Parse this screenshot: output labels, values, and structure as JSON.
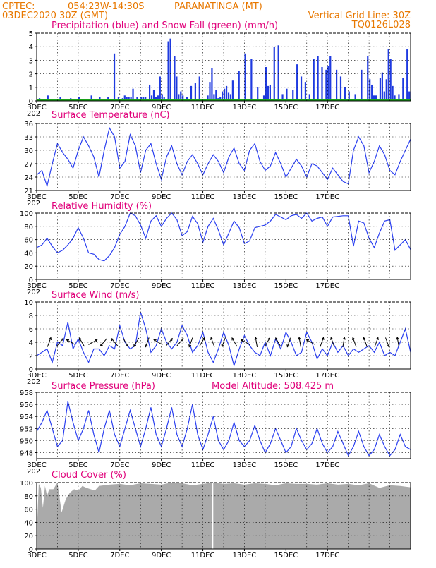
{
  "header": {
    "source": "CPTEC:",
    "coords": "054:23W-14:30S",
    "station": "PARANATINGA (MT)",
    "run": "03DEC2020 30Z (GMT)",
    "grid_note": "Vertical Grid Line: 30Z",
    "code": "TQ0126L028"
  },
  "x_axis": {
    "dates": [
      "3DEC",
      "5DEC",
      "7DEC",
      "9DEC",
      "11DEC",
      "13DEC",
      "15DEC",
      "17DEC"
    ],
    "year_fragment": "202"
  },
  "colors": {
    "precip": "#1f3be0",
    "snow": "#18a018",
    "line": "#2a3ff0",
    "cloud": "#aaaaaa",
    "title": "#e0007a",
    "header": "#e87800"
  },
  "chart_data": [
    {
      "id": "precip",
      "type": "bar",
      "title": "Precipitation (blue) and Snow Fall (green) (mm/h)",
      "ylim": [
        0,
        5
      ],
      "yticks": [
        0,
        1,
        2,
        3,
        4,
        5
      ],
      "series": [
        {
          "name": "Precipitation",
          "x": [
            0.1,
            0.5,
            1.1,
            1.6,
            2.0,
            2.6,
            3.0,
            3.4,
            3.7,
            3.9,
            4.1,
            4.2,
            4.3,
            4.4,
            4.5,
            4.6,
            4.8,
            5.0,
            5.1,
            5.2,
            5.4,
            5.5,
            5.6,
            5.7,
            5.8,
            5.9,
            6.0,
            6.1,
            6.3,
            6.4,
            6.6,
            6.7,
            6.8,
            6.9,
            7.0,
            7.2,
            7.4,
            7.6,
            7.8,
            8.2,
            8.3,
            8.4,
            8.5,
            8.6,
            8.7,
            8.8,
            8.9,
            9.0,
            9.1,
            9.2,
            9.3,
            9.4,
            9.7,
            10.0,
            10.3,
            10.6,
            10.9,
            11.0,
            11.1,
            11.2,
            11.4,
            11.6,
            11.8,
            12.0,
            12.3,
            12.5,
            12.7,
            12.9,
            13.1,
            13.3,
            13.5,
            13.7,
            13.9,
            14.0,
            14.1,
            14.4,
            14.6,
            14.8,
            15.0,
            15.3,
            15.6,
            15.9,
            16.0,
            16.1,
            16.2,
            16.3,
            16.5,
            16.6,
            16.7,
            16.8,
            16.9,
            17.0,
            17.1,
            17.2,
            17.4,
            17.6,
            17.8,
            17.9
          ],
          "values": [
            0.2,
            0.4,
            0.3,
            0.2,
            0.3,
            0.4,
            0.3,
            0.3,
            3.5,
            0.3,
            0.2,
            0.4,
            0.3,
            0.3,
            0.3,
            0.9,
            0.3,
            0.3,
            0.3,
            0.3,
            1.2,
            0.4,
            0.8,
            0.3,
            0.4,
            1.8,
            0.5,
            0.3,
            4.4,
            4.6,
            3.3,
            1.8,
            0.5,
            0.7,
            0.4,
            0.3,
            1.1,
            1.3,
            1.8,
            0.4,
            1.4,
            2.4,
            0.5,
            0.8,
            0.2,
            0.3,
            0.7,
            0.9,
            1.1,
            0.6,
            0.5,
            1.5,
            2.2,
            3.5,
            3.1,
            1.0,
            0.4,
            2.5,
            1.1,
            1.2,
            4.0,
            4.1,
            0.5,
            0.9,
            0.8,
            2.7,
            1.8,
            1.4,
            0.5,
            3.1,
            3.3,
            2.5,
            2.3,
            2.6,
            3.3,
            2.3,
            1.8,
            1.0,
            0.7,
            0.5,
            2.3,
            3.3,
            1.6,
            1.2,
            0.4,
            0.4,
            1.7,
            2.1,
            0.7,
            1.6,
            3.8,
            3.1,
            1.1,
            0.4,
            0.5,
            1.7,
            3.8,
            0.7
          ]
        },
        {
          "name": "Snow Fall",
          "values": [
            0
          ]
        }
      ]
    },
    {
      "id": "temp",
      "type": "line",
      "title": "Surface Temperature (nC)",
      "ylim": [
        21,
        36
      ],
      "yticks": [
        21,
        24,
        27,
        30,
        33,
        36
      ],
      "x": [
        0,
        0.25,
        0.5,
        0.75,
        1.0,
        1.25,
        1.5,
        1.75,
        2.0,
        2.25,
        2.5,
        2.75,
        3.0,
        3.25,
        3.5,
        3.75,
        4.0,
        4.25,
        4.5,
        4.75,
        5.0,
        5.25,
        5.5,
        5.75,
        6.0,
        6.25,
        6.5,
        6.75,
        7.0,
        7.25,
        7.5,
        7.75,
        8.0,
        8.25,
        8.5,
        8.75,
        9.0,
        9.25,
        9.5,
        9.75,
        10.0,
        10.25,
        10.5,
        10.75,
        11.0,
        11.25,
        11.5,
        11.75,
        12.0,
        12.25,
        12.5,
        12.75,
        13.0,
        13.25,
        13.5,
        13.75,
        14.0,
        14.25,
        14.5,
        14.75,
        15.0,
        15.25,
        15.5,
        15.75,
        16.0,
        16.25,
        16.5,
        16.75,
        17.0,
        17.25,
        17.5,
        17.75,
        18.0
      ],
      "values": [
        24.5,
        25.5,
        22.0,
        27.0,
        31.5,
        29.5,
        28.0,
        26.0,
        30.0,
        33.0,
        31.0,
        28.5,
        24.0,
        30.0,
        35.0,
        33.0,
        26.0,
        27.5,
        33.5,
        31.0,
        25.0,
        30.0,
        31.5,
        27.0,
        23.5,
        28.5,
        31.0,
        27.0,
        24.5,
        27.5,
        29.0,
        27.0,
        24.5,
        27.0,
        29.0,
        27.5,
        25.0,
        28.5,
        30.5,
        27.0,
        25.5,
        30.0,
        31.5,
        27.5,
        25.5,
        26.5,
        29.5,
        27.0,
        24.0,
        26.0,
        28.0,
        26.5,
        24.0,
        27.0,
        26.5,
        25.0,
        23.5,
        26.0,
        24.5,
        23.0,
        22.5,
        30.0,
        33.0,
        31.0,
        25.0,
        27.5,
        31.0,
        29.0,
        25.5,
        24.5,
        27.5,
        30.0,
        32.5
      ]
    },
    {
      "id": "rh",
      "type": "line",
      "title": "Relative Humidity (%)",
      "ylim": [
        0,
        100
      ],
      "yticks": [
        0,
        20,
        40,
        60,
        80,
        100
      ],
      "x": [
        0,
        0.25,
        0.5,
        0.75,
        1.0,
        1.25,
        1.5,
        1.75,
        2.0,
        2.25,
        2.5,
        2.75,
        3.0,
        3.25,
        3.5,
        3.75,
        4.0,
        4.25,
        4.5,
        4.75,
        5.0,
        5.25,
        5.5,
        5.75,
        6.0,
        6.25,
        6.5,
        6.75,
        7.0,
        7.25,
        7.5,
        7.75,
        8.0,
        8.25,
        8.5,
        8.75,
        9.0,
        9.25,
        9.5,
        9.75,
        10.0,
        10.25,
        10.5,
        10.75,
        11.0,
        11.25,
        11.5,
        11.75,
        12.0,
        12.25,
        12.5,
        12.75,
        13.0,
        13.25,
        13.5,
        13.75,
        14.0,
        14.25,
        14.5,
        14.75,
        15.0,
        15.25,
        15.5,
        15.75,
        16.0,
        16.25,
        16.5,
        16.75,
        17.0,
        17.25,
        17.5,
        17.75,
        18.0
      ],
      "values": [
        48,
        52,
        62,
        50,
        40,
        44,
        52,
        62,
        78,
        62,
        40,
        38,
        30,
        28,
        36,
        48,
        68,
        80,
        100,
        96,
        82,
        62,
        88,
        96,
        80,
        92,
        100,
        90,
        66,
        72,
        95,
        84,
        56,
        80,
        92,
        74,
        52,
        70,
        88,
        78,
        54,
        58,
        78,
        80,
        82,
        88,
        98,
        94,
        90,
        96,
        98,
        92,
        100,
        88,
        92,
        94,
        80,
        94,
        95,
        96,
        96,
        50,
        88,
        85,
        62,
        48,
        70,
        88,
        90,
        44,
        52,
        60,
        45
      ]
    },
    {
      "id": "wind",
      "type": "line",
      "title": "Surface Wind (m/s)",
      "ylim": [
        0,
        10
      ],
      "yticks": [
        0,
        2,
        4,
        6,
        8,
        10
      ],
      "x": [
        0,
        0.25,
        0.5,
        0.75,
        1.0,
        1.25,
        1.5,
        1.75,
        2.0,
        2.25,
        2.5,
        2.75,
        3.0,
        3.25,
        3.5,
        3.75,
        4.0,
        4.25,
        4.5,
        4.75,
        5.0,
        5.25,
        5.5,
        5.75,
        6.0,
        6.25,
        6.5,
        6.75,
        7.0,
        7.25,
        7.5,
        7.75,
        8.0,
        8.25,
        8.5,
        8.75,
        9.0,
        9.25,
        9.5,
        9.75,
        10.0,
        10.25,
        10.5,
        10.75,
        11.0,
        11.25,
        11.5,
        11.75,
        12.0,
        12.25,
        12.5,
        12.75,
        13.0,
        13.25,
        13.5,
        13.75,
        14.0,
        14.25,
        14.5,
        14.75,
        15.0,
        15.25,
        15.5,
        15.75,
        16.0,
        16.25,
        16.5,
        16.75,
        17.0,
        17.25,
        17.5,
        17.75,
        18.0
      ],
      "values": [
        2.0,
        2.5,
        3.0,
        1.0,
        4.0,
        3.5,
        7.0,
        3.0,
        4.5,
        2.5,
        1.0,
        3.0,
        3.0,
        2.0,
        3.5,
        3.0,
        6.5,
        4.0,
        3.0,
        3.5,
        8.5,
        6.0,
        2.5,
        3.5,
        6.0,
        4.0,
        3.0,
        4.0,
        6.5,
        5.0,
        2.5,
        3.5,
        5.5,
        2.5,
        1.0,
        3.0,
        5.5,
        3.5,
        0.5,
        3.0,
        5.0,
        3.5,
        2.5,
        2.0,
        4.0,
        2.0,
        4.5,
        3.0,
        5.5,
        4.0,
        2.0,
        2.5,
        5.5,
        4.0,
        1.5,
        3.0,
        2.0,
        4.0,
        2.5,
        3.5,
        2.0,
        3.0,
        2.5,
        3.0,
        3.5,
        2.5,
        4.0,
        2.0,
        2.5,
        2.0,
        4.0,
        6.0,
        2.5
      ],
      "arrows_deg": [
        20,
        40,
        300,
        330,
        60,
        220,
        320,
        150,
        210,
        200,
        300,
        40,
        40,
        200,
        30,
        340,
        200,
        330,
        300,
        350,
        30,
        330,
        200,
        350,
        300,
        20,
        340,
        10,
        340,
        340,
        20,
        160,
        350
      ]
    },
    {
      "id": "pressure",
      "type": "line",
      "title": "Surface Pressure (hPa)",
      "annotation": "Model Altitude: 508.425 m",
      "ylim": [
        947,
        958
      ],
      "yticks": [
        948,
        950,
        952,
        954,
        956,
        958
      ],
      "x": [
        0,
        0.25,
        0.5,
        0.75,
        1.0,
        1.25,
        1.5,
        1.75,
        2.0,
        2.25,
        2.5,
        2.75,
        3.0,
        3.25,
        3.5,
        3.75,
        4.0,
        4.25,
        4.5,
        4.75,
        5.0,
        5.25,
        5.5,
        5.75,
        6.0,
        6.25,
        6.5,
        6.75,
        7.0,
        7.25,
        7.5,
        7.75,
        8.0,
        8.25,
        8.5,
        8.75,
        9.0,
        9.25,
        9.5,
        9.75,
        10.0,
        10.25,
        10.5,
        10.75,
        11.0,
        11.25,
        11.5,
        11.75,
        12.0,
        12.25,
        12.5,
        12.75,
        13.0,
        13.25,
        13.5,
        13.75,
        14.0,
        14.25,
        14.5,
        14.75,
        15.0,
        15.25,
        15.5,
        15.75,
        16.0,
        16.25,
        16.5,
        16.75,
        17.0,
        17.25,
        17.5,
        17.75,
        18.0
      ],
      "values": [
        951.5,
        953,
        955,
        952,
        949,
        950,
        956.5,
        953,
        950,
        952,
        955,
        951,
        948,
        952,
        955,
        951,
        949,
        952,
        955,
        952,
        949,
        952,
        955.5,
        951,
        949,
        952,
        955.5,
        951,
        949,
        952,
        956,
        951,
        948.5,
        951,
        954,
        950,
        948.5,
        950,
        953,
        950,
        949,
        950,
        952.5,
        950,
        948,
        949.5,
        952,
        950,
        948,
        949,
        952,
        950,
        948.5,
        949.5,
        952,
        949.5,
        948,
        949,
        951.5,
        949.5,
        947.5,
        949,
        951.5,
        949,
        947.5,
        948.5,
        951,
        949,
        947.5,
        948.5,
        951,
        949,
        948.5
      ]
    },
    {
      "id": "cloud",
      "type": "area",
      "title": "Cloud Cover (%)",
      "ylim": [
        0,
        100
      ],
      "yticks": [
        0,
        20,
        40,
        60,
        80,
        100
      ],
      "x": [
        0,
        0.1,
        0.2,
        0.3,
        0.4,
        0.5,
        0.6,
        0.8,
        1.0,
        1.2,
        1.4,
        1.6,
        1.8,
        2.0,
        2.2,
        2.4,
        2.6,
        2.8,
        3.0,
        3.5,
        4.0,
        4.5,
        5.0,
        5.5,
        6.0,
        6.5,
        7.0,
        7.5,
        8.0,
        8.5,
        9.0,
        9.5,
        10.0,
        10.5,
        11.0,
        11.5,
        12.0,
        12.5,
        13.0,
        13.5,
        14.0,
        14.5,
        15.0,
        15.5,
        16.0,
        16.5,
        17.0,
        17.5,
        18.0
      ],
      "values": [
        20,
        98,
        92,
        62,
        95,
        80,
        90,
        90,
        100,
        55,
        75,
        85,
        90,
        88,
        95,
        92,
        90,
        88,
        95,
        97,
        98,
        96,
        99,
        98,
        97,
        100,
        99,
        96,
        98,
        100,
        98,
        99,
        97,
        99,
        98,
        96,
        99,
        98,
        98,
        97,
        99,
        97,
        98,
        96,
        99,
        92,
        96,
        95,
        93
      ],
      "dips": [
        {
          "x": 8.45,
          "value": 0
        }
      ]
    }
  ]
}
